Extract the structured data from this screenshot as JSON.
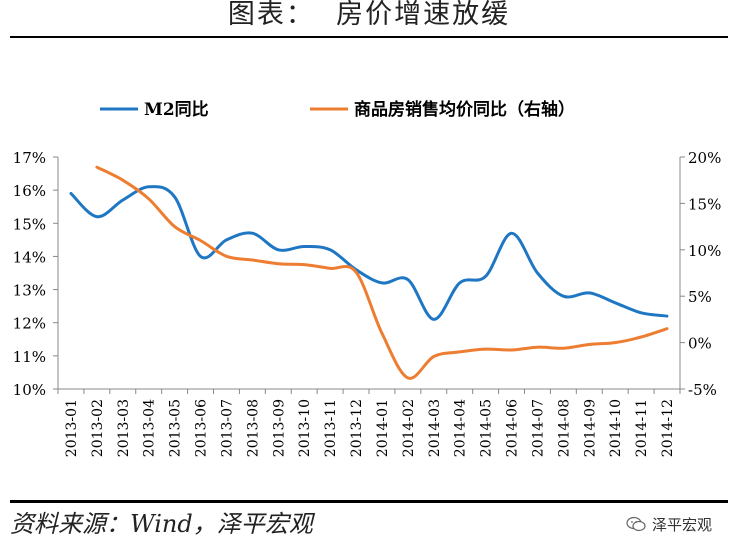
{
  "header": {
    "title": "图表：  房价增速放缓"
  },
  "footer": {
    "source": "资料来源：Wind，泽平宏观",
    "brand": "泽平宏观",
    "brand_icon": "wechat-icon"
  },
  "chart_data": {
    "type": "line",
    "categories": [
      "2013-01",
      "2013-02",
      "2013-03",
      "2013-04",
      "2013-05",
      "2013-06",
      "2013-07",
      "2013-08",
      "2013-09",
      "2013-10",
      "2013-11",
      "2013-12",
      "2014-01",
      "2014-02",
      "2014-03",
      "2014-04",
      "2014-05",
      "2014-06",
      "2014-07",
      "2014-08",
      "2014-09",
      "2014-10",
      "2014-11",
      "2014-12"
    ],
    "left_ticks": [
      "17%",
      "16%",
      "15%",
      "14%",
      "13%",
      "12%",
      "11%",
      "10%"
    ],
    "right_ticks": [
      "20%",
      "15%",
      "10%",
      "5%",
      "0%",
      "-5%"
    ],
    "ylim_left": [
      10,
      17
    ],
    "ylim_right": [
      -5,
      20
    ],
    "legend_position": "top",
    "series": [
      {
        "name": "M2同比",
        "axis": "left",
        "color": "#1f77c4",
        "values": [
          15.9,
          15.2,
          15.7,
          16.1,
          15.8,
          14.0,
          14.5,
          14.7,
          14.2,
          14.3,
          14.2,
          13.6,
          13.2,
          13.3,
          12.1,
          13.2,
          13.4,
          14.7,
          13.5,
          12.8,
          12.9,
          12.6,
          12.3,
          12.2
        ]
      },
      {
        "name": "商品房销售均价同比（右轴）",
        "axis": "right",
        "color": "#ed7d31",
        "values": [
          null,
          18.9,
          17.5,
          15.5,
          12.5,
          11.0,
          9.3,
          8.9,
          8.5,
          8.4,
          8.0,
          7.6,
          1.0,
          -3.8,
          -1.5,
          -1.0,
          -0.7,
          -0.8,
          -0.5,
          -0.6,
          -0.2,
          0.0,
          0.6,
          1.5
        ]
      }
    ]
  }
}
